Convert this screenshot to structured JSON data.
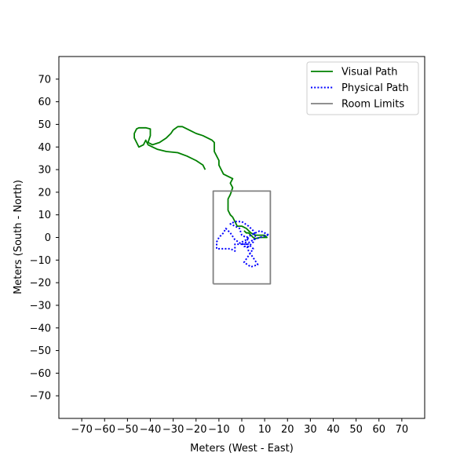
{
  "chart_data": {
    "type": "line",
    "xlabel": "Meters (West - East)",
    "ylabel": "Meters (South - North)",
    "xlim": [
      -80,
      80
    ],
    "ylim": [
      -80,
      80
    ],
    "xticks": [
      -70,
      -60,
      -50,
      -40,
      -30,
      -20,
      -10,
      0,
      10,
      20,
      30,
      40,
      50,
      60,
      70
    ],
    "yticks": [
      -70,
      -60,
      -50,
      -40,
      -30,
      -20,
      -10,
      0,
      10,
      20,
      30,
      40,
      50,
      60,
      70
    ],
    "grid": false,
    "legend_position": "top-right",
    "series": [
      {
        "name": "Visual Path",
        "color": "#008000",
        "style": "solid",
        "points": [
          [
            -16,
            30
          ],
          [
            -17,
            32
          ],
          [
            -20,
            34
          ],
          [
            -24,
            36
          ],
          [
            -28,
            37.5
          ],
          [
            -33,
            38
          ],
          [
            -37,
            39
          ],
          [
            -39,
            40
          ],
          [
            -41,
            41
          ],
          [
            -42,
            43
          ],
          [
            -43,
            41
          ],
          [
            -45,
            40
          ],
          [
            -46,
            42
          ],
          [
            -47,
            44
          ],
          [
            -47,
            46
          ],
          [
            -46,
            48
          ],
          [
            -45,
            48.5
          ],
          [
            -42,
            48.5
          ],
          [
            -40,
            48
          ],
          [
            -40,
            45
          ],
          [
            -41,
            42
          ],
          [
            -39,
            41
          ],
          [
            -36,
            42
          ],
          [
            -33,
            44
          ],
          [
            -31,
            46
          ],
          [
            -30,
            47.5
          ],
          [
            -28,
            49
          ],
          [
            -26,
            49
          ],
          [
            -24,
            48
          ],
          [
            -22,
            47
          ],
          [
            -20,
            46
          ],
          [
            -17,
            45
          ],
          [
            -15,
            44
          ],
          [
            -13,
            43
          ],
          [
            -12,
            42
          ],
          [
            -12,
            38
          ],
          [
            -11,
            36
          ],
          [
            -10,
            34
          ],
          [
            -10,
            32
          ],
          [
            -9,
            30
          ],
          [
            -8,
            28
          ],
          [
            -6,
            27
          ],
          [
            -4,
            26
          ],
          [
            -5,
            24
          ],
          [
            -4,
            22
          ],
          [
            -5,
            19
          ],
          [
            -6,
            17
          ],
          [
            -6,
            14
          ],
          [
            -6,
            12
          ],
          [
            -5,
            10
          ],
          [
            -4,
            9
          ],
          [
            -3,
            7
          ],
          [
            -2,
            5
          ],
          [
            0,
            5
          ],
          [
            2,
            4
          ],
          [
            3,
            3
          ],
          [
            4,
            2
          ],
          [
            6,
            1
          ],
          [
            8,
            1
          ],
          [
            10,
            1
          ],
          [
            11,
            0
          ],
          [
            8,
            0
          ],
          [
            6,
            -0.5
          ],
          [
            5,
            0
          ],
          [
            4,
            1
          ],
          [
            3,
            2
          ],
          [
            2,
            2
          ],
          [
            1,
            3
          ]
        ]
      },
      {
        "name": "Physical Path",
        "color": "#0000ff",
        "style": "dotted",
        "points": [
          [
            2,
            -2
          ],
          [
            0,
            -3
          ],
          [
            -3,
            -1
          ],
          [
            -5,
            2
          ],
          [
            -7,
            4
          ],
          [
            -8,
            2
          ],
          [
            -10,
            0
          ],
          [
            -11,
            -2
          ],
          [
            -11,
            -5
          ],
          [
            -8,
            -5
          ],
          [
            -5,
            -5
          ],
          [
            -3,
            -6
          ],
          [
            -3,
            -3
          ],
          [
            0,
            -3
          ],
          [
            3,
            -3
          ],
          [
            5,
            -5
          ],
          [
            3,
            -8
          ],
          [
            1,
            -11
          ],
          [
            4,
            -13
          ],
          [
            7,
            -12
          ],
          [
            5,
            -9
          ],
          [
            3,
            -6
          ],
          [
            2,
            -3
          ],
          [
            5,
            -1
          ],
          [
            8,
            0
          ],
          [
            11,
            1
          ],
          [
            12,
            1
          ],
          [
            10,
            2
          ],
          [
            8,
            3
          ],
          [
            6,
            2
          ],
          [
            4,
            1
          ],
          [
            2,
            0
          ],
          [
            0,
            1
          ],
          [
            -1,
            4
          ],
          [
            -3,
            5
          ],
          [
            -5,
            6
          ],
          [
            -3,
            7
          ],
          [
            0,
            7
          ],
          [
            3,
            5
          ],
          [
            5,
            3
          ],
          [
            6,
            1
          ],
          [
            5,
            -2
          ],
          [
            3,
            -4
          ],
          [
            1,
            -4
          ],
          [
            0,
            -2
          ],
          [
            2,
            -1
          ],
          [
            3,
            0
          ],
          [
            2,
            -2
          ]
        ]
      },
      {
        "name": "Room Limits",
        "color": "#808080",
        "style": "solid",
        "points": [
          [
            -12.5,
            -20.5
          ],
          [
            12.5,
            -20.5
          ],
          [
            12.5,
            20.5
          ],
          [
            -12.5,
            20.5
          ],
          [
            -12.5,
            -20.5
          ]
        ]
      }
    ]
  }
}
